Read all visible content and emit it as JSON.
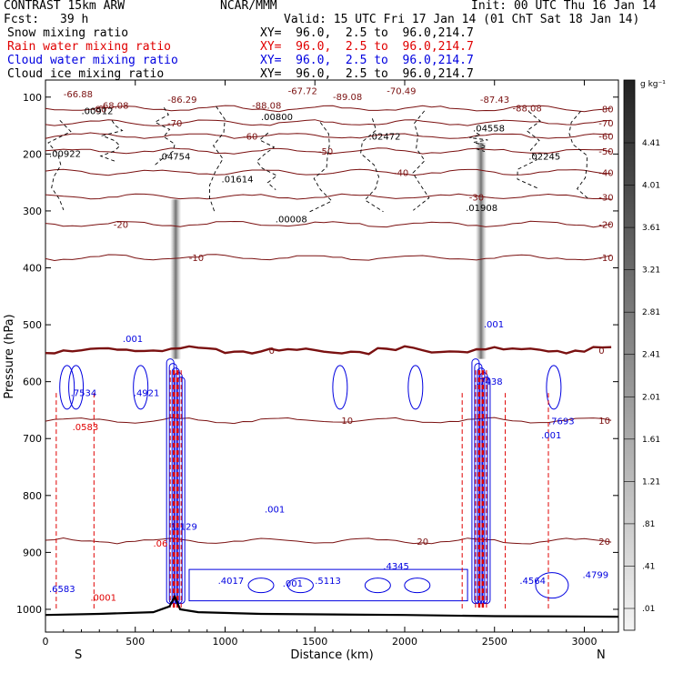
{
  "header": {
    "model": "CONTRAST 15km ARW",
    "center": "NCAR/MMM",
    "init": "Init: 00 UTC Thu 16 Jan 14",
    "fcst_label": "Fcst:",
    "fcst_value": "39 h",
    "valid": "Valid: 15 UTC Fri 17 Jan 14 (01 ChT Sat 18 Jan 14)"
  },
  "fields": [
    {
      "label": "Snow mixing ratio",
      "xy": "XY=  96.0,  2.5 to  96.0,214.7",
      "color": "#000000"
    },
    {
      "label": "Rain water mixing ratio",
      "xy": "XY=  96.0,  2.5 to  96.0,214.7",
      "color": "#e00000"
    },
    {
      "label": "Cloud water mixing ratio",
      "xy": "XY=  96.0,  2.5 to  96.0,214.7",
      "color": "#0000e0"
    },
    {
      "label": "Cloud ice mixing ratio",
      "xy": "XY=  96.0,  2.5 to  96.0,214.7",
      "color": "#000000"
    }
  ],
  "colorbar": {
    "unit": "g kg⁻¹",
    "labels": [
      "4.41",
      "4.01",
      "3.61",
      "3.21",
      "2.81",
      "2.41",
      "2.01",
      "1.61",
      "1.21",
      ".81",
      ".41",
      ".01"
    ]
  },
  "chart_data": {
    "type": "contour",
    "xlabel": "Distance (km)",
    "ylabel": "Pressure (hPa)",
    "xlim": [
      0,
      3190
    ],
    "ylim": [
      1040,
      70
    ],
    "x_ticks": [
      "0",
      "500",
      "1000",
      "1500",
      "2000",
      "2500",
      "3000"
    ],
    "x_tick_values": [
      0,
      500,
      1000,
      1500,
      2000,
      2500,
      3000
    ],
    "y_ticks": [
      "100",
      "200",
      "300",
      "400",
      "500",
      "600",
      "700",
      "800",
      "900",
      "1000"
    ],
    "y_tick_values": [
      100,
      200,
      300,
      400,
      500,
      600,
      700,
      800,
      900,
      1000
    ],
    "x_end_labels": {
      "left": "S",
      "right": "N"
    },
    "temperature_contours": [
      {
        "level": -80,
        "p": 120
      },
      {
        "level": -70,
        "p": 145
      },
      {
        "level": -60,
        "p": 168
      },
      {
        "level": -50,
        "p": 195
      },
      {
        "level": -40,
        "p": 232
      },
      {
        "level": -30,
        "p": 275
      },
      {
        "level": -20,
        "p": 323
      },
      {
        "level": -10,
        "p": 382
      },
      {
        "level": 0,
        "p": 545
      },
      {
        "level": 10,
        "p": 668
      },
      {
        "level": 20,
        "p": 880
      }
    ],
    "temperature_labels": [
      "-80",
      "-70",
      "-60",
      "-50",
      "-40",
      "-30",
      "-20",
      "-10",
      "0",
      "10",
      "20"
    ],
    "extrema_labels": [
      "-66.88",
      "-86.29",
      "-67.72",
      "-89.08",
      "-70.49",
      "-87.43",
      "-68.08",
      "-88.08",
      "-88.08"
    ],
    "snow_maxima": [
      ".00912",
      ".00922",
      ".04754",
      ".01614",
      ".00800",
      ".02472",
      ".04558",
      ".00008",
      ".01908",
      ".02245"
    ],
    "cloud_water_maxima": [
      ".7534",
      ".4921",
      ".7438",
      ".7693",
      ".4017",
      ".5113",
      ".4345",
      ".4564",
      ".4799",
      ".6583",
      "1.129"
    ],
    "rain_maxima": [
      ".0583",
      ".0001",
      ".06"
    ],
    "contour_labels": [
      ".001",
      "0",
      "10",
      "20"
    ],
    "terrain": [
      [
        0,
        1010
      ],
      [
        300,
        1008
      ],
      [
        600,
        1005
      ],
      [
        690,
        995
      ],
      [
        720,
        978
      ],
      [
        750,
        1000
      ],
      [
        850,
        1005
      ],
      [
        1200,
        1008
      ],
      [
        2000,
        1010
      ],
      [
        2500,
        1012
      ],
      [
        3190,
        1013
      ]
    ],
    "convective_columns_km": [
      725,
      2425
    ]
  }
}
